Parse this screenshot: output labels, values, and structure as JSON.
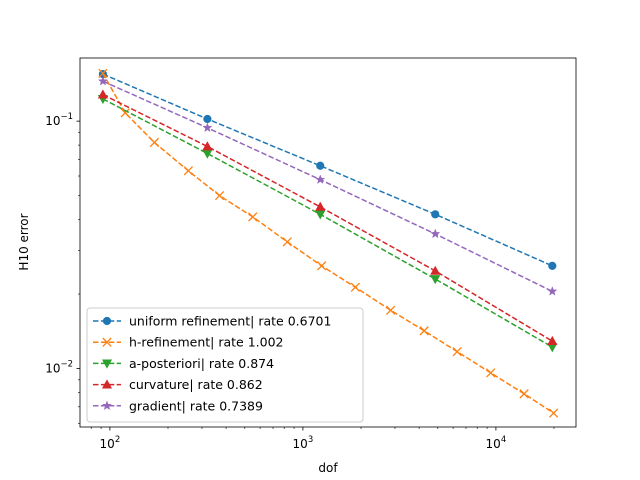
{
  "chart_data": {
    "type": "line",
    "title": "",
    "xlabel": "dof",
    "ylabel": "H10 error",
    "xscale": "log",
    "yscale": "log",
    "xlim": [
      70,
      26000
    ],
    "ylim": [
      0.0058,
      0.18
    ],
    "grid": false,
    "legend_position": "lower-left",
    "x_ticks": [
      {
        "value": 100,
        "base": "10",
        "exp": "2"
      },
      {
        "value": 1000,
        "base": "10",
        "exp": "3"
      },
      {
        "value": 10000,
        "base": "10",
        "exp": "4"
      }
    ],
    "y_ticks": [
      {
        "value": 0.1,
        "base": "10",
        "exp": "−1"
      },
      {
        "value": 0.01,
        "base": "10",
        "exp": "−2"
      }
    ],
    "series": [
      {
        "name": "uniform refinement| rate 0.6701",
        "color": "#1f77b4",
        "marker": "circle",
        "x": [
          92,
          320,
          1230,
          4850,
          19600
        ],
        "y": [
          0.155,
          0.102,
          0.066,
          0.042,
          0.026
        ]
      },
      {
        "name": "h-refinement| rate 1.002",
        "color": "#ff7f0e",
        "marker": "x",
        "x": [
          92,
          120,
          170,
          255,
          370,
          550,
          830,
          1250,
          1870,
          2850,
          4250,
          6300,
          9400,
          14000,
          19900
        ],
        "y": [
          0.156,
          0.108,
          0.082,
          0.063,
          0.05,
          0.041,
          0.0325,
          0.026,
          0.0213,
          0.0172,
          0.0142,
          0.0117,
          0.0096,
          0.0079,
          0.0066
        ]
      },
      {
        "name": "a-posteriori| rate 0.874",
        "color": "#2ca02c",
        "marker": "triangle-down",
        "x": [
          92,
          320,
          1230,
          4850,
          19600
        ],
        "y": [
          0.123,
          0.074,
          0.042,
          0.023,
          0.0122
        ]
      },
      {
        "name": "curvature| rate 0.862",
        "color": "#d62728",
        "marker": "triangle-up",
        "x": [
          92,
          320,
          1230,
          4850,
          19600
        ],
        "y": [
          0.128,
          0.079,
          0.045,
          0.0248,
          0.0129
        ]
      },
      {
        "name": "gradient| rate 0.7389",
        "color": "#9467bd",
        "marker": "star",
        "x": [
          92,
          320,
          1230,
          4850,
          19600
        ],
        "y": [
          0.145,
          0.094,
          0.058,
          0.035,
          0.0205
        ]
      }
    ]
  }
}
